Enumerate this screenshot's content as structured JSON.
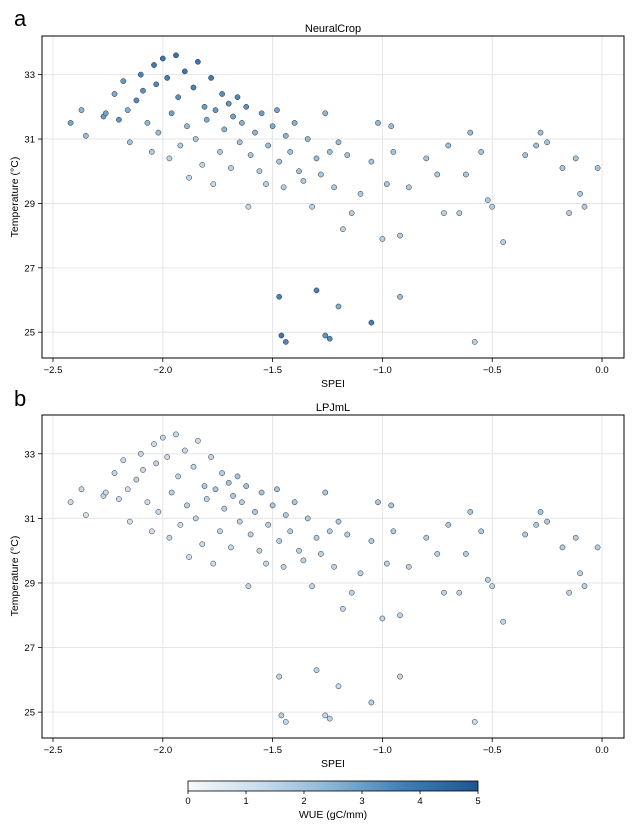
{
  "colorbar": {
    "label": "WUE (gC/mm)",
    "min": 0,
    "max": 5,
    "ticks": [
      0,
      1,
      2,
      3,
      4,
      5
    ],
    "colors": [
      "#f7f9fb",
      "#c9dcec",
      "#88b4d6",
      "#3f7db5",
      "#1f5590"
    ]
  },
  "chart_data": [
    {
      "type": "scatter",
      "panel_letter": "a",
      "title": "NeuralCrop",
      "xlabel": "SPEI",
      "ylabel": "Temperature (°C)",
      "xlim": [
        -2.55,
        0.1
      ],
      "ylim": [
        24.2,
        34.2
      ],
      "xticks": [
        -2.5,
        -2.0,
        -1.5,
        -1.0,
        -0.5,
        0.0
      ],
      "xtick_labels": [
        "−2.5",
        "−2.0",
        "−1.5",
        "−1.0",
        "−0.5",
        "0.0"
      ],
      "yticks": [
        25,
        27,
        29,
        31,
        33
      ],
      "ytick_labels": [
        "25",
        "27",
        "29",
        "31",
        "33"
      ],
      "grid": true,
      "points": [
        [
          -2.42,
          31.5,
          2.8
        ],
        [
          -2.37,
          31.9,
          2.5
        ],
        [
          -2.35,
          31.1,
          2.2
        ],
        [
          -2.27,
          31.7,
          3.0
        ],
        [
          -2.26,
          31.8,
          2.9
        ],
        [
          -2.22,
          32.4,
          2.7
        ],
        [
          -2.2,
          31.6,
          3.2
        ],
        [
          -2.18,
          32.8,
          3.1
        ],
        [
          -2.16,
          31.9,
          2.6
        ],
        [
          -2.15,
          30.9,
          2.0
        ],
        [
          -2.12,
          32.2,
          3.4
        ],
        [
          -2.1,
          33.0,
          3.6
        ],
        [
          -2.09,
          32.5,
          3.3
        ],
        [
          -2.07,
          31.5,
          2.4
        ],
        [
          -2.05,
          30.6,
          1.8
        ],
        [
          -2.04,
          33.3,
          3.8
        ],
        [
          -2.03,
          32.7,
          3.5
        ],
        [
          -2.02,
          31.2,
          2.2
        ],
        [
          -2.0,
          33.5,
          4.0
        ],
        [
          -1.98,
          32.9,
          3.7
        ],
        [
          -1.97,
          30.4,
          1.5
        ],
        [
          -1.96,
          31.8,
          2.9
        ],
        [
          -1.94,
          33.6,
          4.1
        ],
        [
          -1.93,
          32.3,
          3.3
        ],
        [
          -1.92,
          30.8,
          1.7
        ],
        [
          -1.9,
          33.1,
          3.9
        ],
        [
          -1.89,
          31.4,
          2.3
        ],
        [
          -1.88,
          29.8,
          1.4
        ],
        [
          -1.86,
          32.6,
          3.6
        ],
        [
          -1.85,
          31.0,
          1.9
        ],
        [
          -1.84,
          33.4,
          4.0
        ],
        [
          -1.82,
          30.2,
          1.5
        ],
        [
          -1.81,
          32.0,
          3.0
        ],
        [
          -1.8,
          31.6,
          2.7
        ],
        [
          -1.78,
          32.9,
          3.8
        ],
        [
          -1.77,
          29.6,
          1.3
        ],
        [
          -1.76,
          31.9,
          3.1
        ],
        [
          -1.74,
          30.6,
          1.8
        ],
        [
          -1.73,
          32.4,
          3.4
        ],
        [
          -1.72,
          31.3,
          2.4
        ],
        [
          -1.7,
          32.1,
          3.2
        ],
        [
          -1.69,
          30.1,
          1.6
        ],
        [
          -1.68,
          31.7,
          2.9
        ],
        [
          -1.66,
          32.3,
          3.5
        ],
        [
          -1.65,
          30.9,
          2.0
        ],
        [
          -1.64,
          31.5,
          2.6
        ],
        [
          -1.62,
          32.0,
          3.3
        ],
        [
          -1.61,
          28.9,
          1.3
        ],
        [
          -1.6,
          30.5,
          1.9
        ],
        [
          -1.58,
          31.2,
          2.5
        ],
        [
          -1.56,
          30.0,
          1.7
        ],
        [
          -1.55,
          31.8,
          3.0
        ],
        [
          -1.53,
          29.6,
          1.6
        ],
        [
          -1.52,
          30.8,
          2.2
        ],
        [
          -1.5,
          31.4,
          2.7
        ],
        [
          -1.48,
          31.9,
          2.9
        ],
        [
          -1.47,
          30.3,
          2.0
        ],
        [
          -1.45,
          29.5,
          1.7
        ],
        [
          -1.44,
          31.1,
          2.5
        ],
        [
          -1.42,
          30.6,
          2.1
        ],
        [
          -1.4,
          31.5,
          2.6
        ],
        [
          -1.38,
          30.0,
          2.0
        ],
        [
          -1.36,
          29.7,
          1.8
        ],
        [
          -1.34,
          31.0,
          2.3
        ],
        [
          -1.32,
          28.9,
          1.6
        ],
        [
          -1.3,
          30.4,
          2.2
        ],
        [
          -1.28,
          29.9,
          1.9
        ],
        [
          -1.26,
          31.8,
          2.4
        ],
        [
          -1.24,
          30.6,
          2.1
        ],
        [
          -1.22,
          29.5,
          1.8
        ],
        [
          -1.2,
          30.9,
          2.2
        ],
        [
          -1.18,
          28.2,
          1.6
        ],
        [
          -1.16,
          30.5,
          2.0
        ],
        [
          -1.14,
          28.7,
          1.7
        ],
        [
          -1.1,
          29.3,
          1.8
        ],
        [
          -1.05,
          30.3,
          2.0
        ],
        [
          -1.02,
          31.5,
          2.3
        ],
        [
          -1.0,
          27.9,
          1.6
        ],
        [
          -0.98,
          29.6,
          1.9
        ],
        [
          -0.96,
          31.4,
          2.2
        ],
        [
          -0.95,
          30.6,
          2.0
        ],
        [
          -0.92,
          28.0,
          1.7
        ],
        [
          -0.88,
          29.5,
          1.8
        ],
        [
          -0.8,
          30.4,
          2.0
        ],
        [
          -0.75,
          29.9,
          1.8
        ],
        [
          -0.72,
          28.7,
          1.6
        ],
        [
          -0.7,
          30.8,
          2.1
        ],
        [
          -0.65,
          28.7,
          1.7
        ],
        [
          -0.62,
          29.9,
          1.9
        ],
        [
          -0.6,
          31.2,
          2.2
        ],
        [
          -0.58,
          24.7,
          1.6
        ],
        [
          -0.55,
          30.6,
          2.0
        ],
        [
          -0.52,
          29.1,
          1.8
        ],
        [
          -0.5,
          28.9,
          1.7
        ],
        [
          -0.45,
          27.8,
          1.6
        ],
        [
          -0.35,
          30.5,
          2.0
        ],
        [
          -0.3,
          30.8,
          2.1
        ],
        [
          -0.28,
          31.2,
          2.1
        ],
        [
          -0.25,
          30.9,
          2.0
        ],
        [
          -0.18,
          30.1,
          1.9
        ],
        [
          -0.15,
          28.7,
          1.7
        ],
        [
          -0.12,
          30.4,
          2.0
        ],
        [
          -0.1,
          29.3,
          1.8
        ],
        [
          -0.08,
          28.9,
          1.7
        ],
        [
          -0.02,
          30.1,
          1.9
        ],
        [
          -1.47,
          26.1,
          3.6
        ],
        [
          -1.46,
          24.9,
          3.8
        ],
        [
          -1.44,
          24.7,
          3.5
        ],
        [
          -1.3,
          26.3,
          3.6
        ],
        [
          -1.26,
          24.9,
          3.2
        ],
        [
          -1.24,
          24.8,
          3.4
        ],
        [
          -1.2,
          25.8,
          2.6
        ],
        [
          -1.05,
          25.3,
          3.7
        ],
        [
          -0.92,
          26.1,
          2.2
        ]
      ]
    },
    {
      "type": "scatter",
      "panel_letter": "b",
      "title": "LPJmL",
      "xlabel": "SPEI",
      "ylabel": "Temperature (°C)",
      "xlim": [
        -2.55,
        0.1
      ],
      "ylim": [
        24.2,
        34.2
      ],
      "xticks": [
        -2.5,
        -2.0,
        -1.5,
        -1.0,
        -0.5,
        0.0
      ],
      "xtick_labels": [
        "−2.5",
        "−2.0",
        "−1.5",
        "−1.0",
        "−0.5",
        "0.0"
      ],
      "yticks": [
        25,
        27,
        29,
        31,
        33
      ],
      "ytick_labels": [
        "25",
        "27",
        "29",
        "31",
        "33"
      ],
      "grid": true,
      "points": [
        [
          -2.42,
          31.5,
          1.2
        ],
        [
          -2.37,
          31.9,
          1.3
        ],
        [
          -2.35,
          31.1,
          1.0
        ],
        [
          -2.27,
          31.7,
          1.4
        ],
        [
          -2.26,
          31.8,
          1.3
        ],
        [
          -2.22,
          32.4,
          1.4
        ],
        [
          -2.2,
          31.6,
          1.2
        ],
        [
          -2.18,
          32.8,
          1.3
        ],
        [
          -2.16,
          31.9,
          1.1
        ],
        [
          -2.15,
          30.9,
          1.0
        ],
        [
          -2.12,
          32.2,
          1.5
        ],
        [
          -2.1,
          33.0,
          1.4
        ],
        [
          -2.09,
          32.5,
          1.3
        ],
        [
          -2.07,
          31.5,
          1.2
        ],
        [
          -2.05,
          30.6,
          1.1
        ],
        [
          -2.04,
          33.3,
          1.2
        ],
        [
          -2.03,
          32.7,
          1.5
        ],
        [
          -2.02,
          31.2,
          1.3
        ],
        [
          -2.0,
          33.5,
          1.4
        ],
        [
          -1.98,
          32.9,
          1.2
        ],
        [
          -1.97,
          30.4,
          1.4
        ],
        [
          -1.96,
          31.8,
          1.6
        ],
        [
          -1.94,
          33.6,
          1.3
        ],
        [
          -1.93,
          32.3,
          1.5
        ],
        [
          -1.92,
          30.8,
          1.2
        ],
        [
          -1.9,
          33.1,
          1.3
        ],
        [
          -1.89,
          31.4,
          1.6
        ],
        [
          -1.88,
          29.8,
          1.1
        ],
        [
          -1.86,
          32.6,
          1.4
        ],
        [
          -1.85,
          31.0,
          1.5
        ],
        [
          -1.84,
          33.4,
          1.2
        ],
        [
          -1.82,
          30.2,
          1.3
        ],
        [
          -1.81,
          32.0,
          1.8
        ],
        [
          -1.8,
          31.6,
          1.6
        ],
        [
          -1.78,
          32.9,
          1.4
        ],
        [
          -1.77,
          29.6,
          1.2
        ],
        [
          -1.76,
          31.9,
          1.9
        ],
        [
          -1.74,
          30.6,
          1.5
        ],
        [
          -1.73,
          32.4,
          1.7
        ],
        [
          -1.72,
          31.3,
          1.6
        ],
        [
          -1.7,
          32.1,
          2.0
        ],
        [
          -1.69,
          30.1,
          1.3
        ],
        [
          -1.68,
          31.7,
          1.8
        ],
        [
          -1.66,
          32.3,
          1.9
        ],
        [
          -1.65,
          30.9,
          1.5
        ],
        [
          -1.64,
          31.5,
          1.7
        ],
        [
          -1.62,
          32.0,
          2.1
        ],
        [
          -1.61,
          28.9,
          1.4
        ],
        [
          -1.6,
          30.5,
          1.6
        ],
        [
          -1.58,
          31.2,
          1.8
        ],
        [
          -1.56,
          30.0,
          1.5
        ],
        [
          -1.55,
          31.8,
          2.0
        ],
        [
          -1.53,
          29.6,
          1.4
        ],
        [
          -1.52,
          30.8,
          1.7
        ],
        [
          -1.5,
          31.4,
          1.9
        ],
        [
          -1.48,
          31.9,
          2.0
        ],
        [
          -1.47,
          30.3,
          1.6
        ],
        [
          -1.45,
          29.5,
          1.5
        ],
        [
          -1.44,
          31.1,
          1.8
        ],
        [
          -1.42,
          30.6,
          1.7
        ],
        [
          -1.4,
          31.5,
          1.9
        ],
        [
          -1.38,
          30.0,
          1.6
        ],
        [
          -1.36,
          29.7,
          1.5
        ],
        [
          -1.34,
          31.0,
          1.8
        ],
        [
          -1.32,
          28.9,
          1.4
        ],
        [
          -1.3,
          30.4,
          1.7
        ],
        [
          -1.28,
          29.9,
          1.6
        ],
        [
          -1.26,
          31.8,
          1.9
        ],
        [
          -1.24,
          30.6,
          1.7
        ],
        [
          -1.22,
          29.5,
          1.5
        ],
        [
          -1.2,
          30.9,
          1.8
        ],
        [
          -1.18,
          28.2,
          1.4
        ],
        [
          -1.16,
          30.5,
          1.7
        ],
        [
          -1.14,
          28.7,
          1.5
        ],
        [
          -1.1,
          29.3,
          1.6
        ],
        [
          -1.05,
          30.3,
          1.7
        ],
        [
          -1.02,
          31.5,
          1.9
        ],
        [
          -1.0,
          27.9,
          1.4
        ],
        [
          -0.98,
          29.6,
          1.6
        ],
        [
          -0.96,
          31.4,
          1.9
        ],
        [
          -0.95,
          30.6,
          1.8
        ],
        [
          -0.92,
          28.0,
          1.5
        ],
        [
          -0.88,
          29.5,
          1.6
        ],
        [
          -0.8,
          30.4,
          1.7
        ],
        [
          -0.75,
          29.9,
          1.6
        ],
        [
          -0.72,
          28.7,
          1.5
        ],
        [
          -0.7,
          30.8,
          1.8
        ],
        [
          -0.65,
          28.7,
          1.5
        ],
        [
          -0.62,
          29.9,
          1.7
        ],
        [
          -0.6,
          31.2,
          1.9
        ],
        [
          -0.58,
          24.7,
          1.3
        ],
        [
          -0.55,
          30.6,
          1.8
        ],
        [
          -0.52,
          29.1,
          1.6
        ],
        [
          -0.5,
          28.9,
          1.5
        ],
        [
          -0.45,
          27.8,
          1.4
        ],
        [
          -0.35,
          30.5,
          1.8
        ],
        [
          -0.3,
          30.8,
          1.8
        ],
        [
          -0.28,
          31.2,
          1.9
        ],
        [
          -0.25,
          30.9,
          1.8
        ],
        [
          -0.18,
          30.1,
          1.7
        ],
        [
          -0.15,
          28.7,
          1.5
        ],
        [
          -0.12,
          30.4,
          1.7
        ],
        [
          -0.1,
          29.3,
          1.6
        ],
        [
          -0.08,
          28.9,
          1.5
        ],
        [
          -0.02,
          30.1,
          1.7
        ],
        [
          -1.47,
          26.1,
          1.5
        ],
        [
          -1.46,
          24.9,
          1.6
        ],
        [
          -1.44,
          24.7,
          1.4
        ],
        [
          -1.3,
          26.3,
          1.5
        ],
        [
          -1.26,
          24.9,
          1.4
        ],
        [
          -1.24,
          24.8,
          1.5
        ],
        [
          -1.2,
          25.8,
          1.3
        ],
        [
          -1.05,
          25.3,
          1.6
        ],
        [
          -0.92,
          26.1,
          1.4
        ]
      ]
    }
  ]
}
